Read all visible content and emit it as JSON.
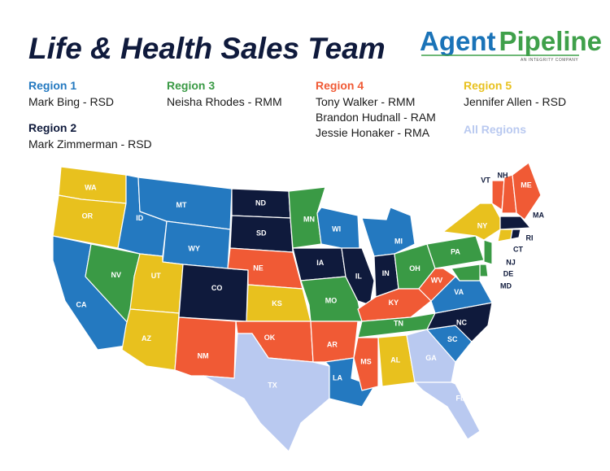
{
  "title": "Life & Health Sales Team",
  "logo": {
    "word1": "Agent",
    "word2": "Pipeline",
    "tagline": "AN INTEGRITY COMPANY"
  },
  "regions": [
    {
      "name": "Region 1",
      "color": "#2479c0",
      "members": [
        "Mark Bing - RSD"
      ]
    },
    {
      "name": "Region 2",
      "color": "#0f1a3c",
      "members": [
        "Mark Zimmerman - RSD"
      ]
    },
    {
      "name": "Region 3",
      "color": "#3a9a45",
      "members": [
        "Neisha Rhodes - RMM"
      ]
    },
    {
      "name": "Region 4",
      "color": "#f05a35",
      "members": [
        "Tony Walker - RMM",
        "Brandon Hudnall - RAM",
        "Jessie Honaker - RMA"
      ]
    },
    {
      "name": "Region 5",
      "color": "#e8c11e",
      "members": [
        "Jennifer Allen - RSD"
      ]
    },
    {
      "name": "All Regions",
      "color": "#b9c9f0",
      "members": []
    }
  ],
  "states": [
    {
      "label": "WA",
      "region": 4
    },
    {
      "label": "OR",
      "region": 4
    },
    {
      "label": "CA",
      "region": 0
    },
    {
      "label": "NV",
      "region": 2
    },
    {
      "label": "ID",
      "region": 0
    },
    {
      "label": "MT",
      "region": 0
    },
    {
      "label": "WY",
      "region": 0
    },
    {
      "label": "UT",
      "region": 4
    },
    {
      "label": "AZ",
      "region": 4
    },
    {
      "label": "CO",
      "region": 1
    },
    {
      "label": "NM",
      "region": 3
    },
    {
      "label": "ND",
      "region": 1
    },
    {
      "label": "SD",
      "region": 1
    },
    {
      "label": "NE",
      "region": 3
    },
    {
      "label": "KS",
      "region": 4
    },
    {
      "label": "OK",
      "region": 3
    },
    {
      "label": "TX",
      "region": 5
    },
    {
      "label": "MN",
      "region": 2
    },
    {
      "label": "IA",
      "region": 1
    },
    {
      "label": "MO",
      "region": 2
    },
    {
      "label": "AR",
      "region": 3
    },
    {
      "label": "LA",
      "region": 0
    },
    {
      "label": "WI",
      "region": 0
    },
    {
      "label": "IL",
      "region": 1
    },
    {
      "label": "MI",
      "region": 0
    },
    {
      "label": "IN",
      "region": 1
    },
    {
      "label": "OH",
      "region": 2
    },
    {
      "label": "KY",
      "region": 3
    },
    {
      "label": "TN",
      "region": 2
    },
    {
      "label": "MS",
      "region": 3
    },
    {
      "label": "AL",
      "region": 4
    },
    {
      "label": "GA",
      "region": 5
    },
    {
      "label": "FL",
      "region": 5
    },
    {
      "label": "SC",
      "region": 0
    },
    {
      "label": "NC",
      "region": 1
    },
    {
      "label": "VA",
      "region": 0
    },
    {
      "label": "WV",
      "region": 3
    },
    {
      "label": "PA",
      "region": 2
    },
    {
      "label": "NY",
      "region": 4
    },
    {
      "label": "VT",
      "region": 3
    },
    {
      "label": "NH",
      "region": 3
    },
    {
      "label": "ME",
      "region": 3
    },
    {
      "label": "MA",
      "region": 1
    },
    {
      "label": "CT",
      "region": 4
    },
    {
      "label": "RI",
      "region": 1
    },
    {
      "label": "NJ",
      "region": 2
    },
    {
      "label": "DE",
      "region": 2
    },
    {
      "label": "MD",
      "region": 2
    }
  ]
}
